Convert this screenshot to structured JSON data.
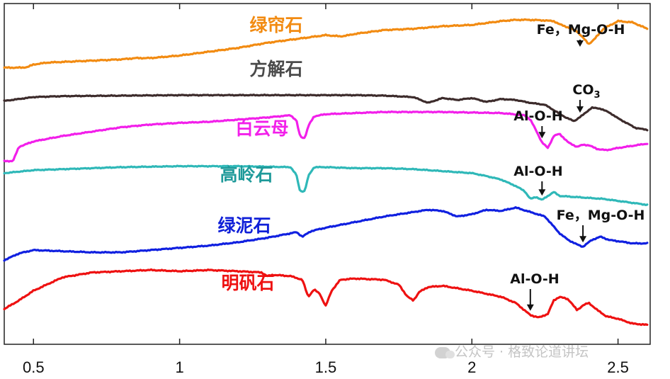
{
  "chart_data": {
    "type": "line",
    "xlabel": "",
    "ylabel": "",
    "xlim": [
      0.4,
      2.61
    ],
    "xticks": [
      0.5,
      1,
      1.5,
      2,
      2.5
    ],
    "xtick_labels": [
      "0.5",
      "1",
      "1.5",
      "2",
      "2.5"
    ],
    "grid": false,
    "series": [
      {
        "name": "绿帘石",
        "color": "#f28b12",
        "label_color": "#f28b12",
        "x": [
          0.4,
          0.46,
          0.48,
          0.5,
          0.55,
          0.6,
          0.7,
          0.8,
          0.85,
          0.9,
          1.0,
          1.1,
          1.2,
          1.3,
          1.4,
          1.5,
          1.55,
          1.58,
          1.6,
          1.7,
          1.8,
          1.9,
          2.0,
          2.1,
          2.15,
          2.2,
          2.25,
          2.28,
          2.3,
          2.33,
          2.36,
          2.38,
          2.4,
          2.42,
          2.45,
          2.5,
          2.55,
          2.6
        ],
        "y": [
          0.25,
          0.25,
          0.26,
          0.3,
          0.33,
          0.34,
          0.36,
          0.38,
          0.4,
          0.4,
          0.44,
          0.5,
          0.56,
          0.64,
          0.7,
          0.76,
          0.74,
          0.76,
          0.78,
          0.84,
          0.86,
          0.9,
          0.92,
          0.98,
          1.0,
          1.0,
          0.99,
          0.98,
          0.93,
          0.88,
          0.82,
          0.72,
          0.62,
          0.7,
          0.86,
          0.98,
          0.96,
          0.86
        ]
      },
      {
        "name": "方解石",
        "color": "#3d2c2c",
        "label_color": "#4a4a4a",
        "x": [
          0.4,
          0.5,
          0.6,
          0.8,
          1.0,
          1.2,
          1.4,
          1.6,
          1.7,
          1.8,
          1.85,
          1.9,
          1.95,
          2.0,
          2.05,
          2.1,
          2.15,
          2.2,
          2.25,
          2.28,
          2.32,
          2.35,
          2.38,
          2.41,
          2.44,
          2.47,
          2.5,
          2.53,
          2.56,
          2.6
        ],
        "y": [
          0.64,
          0.72,
          0.74,
          0.75,
          0.76,
          0.76,
          0.76,
          0.76,
          0.75,
          0.72,
          0.6,
          0.7,
          0.66,
          0.7,
          0.62,
          0.68,
          0.66,
          0.6,
          0.56,
          0.45,
          0.3,
          0.22,
          0.35,
          0.5,
          0.48,
          0.4,
          0.28,
          0.18,
          0.08,
          0.04
        ]
      },
      {
        "name": "白云母",
        "color": "#f21fea",
        "label_color": "#f21fea",
        "x": [
          0.4,
          0.43,
          0.45,
          0.5,
          0.6,
          0.7,
          0.8,
          0.9,
          1.0,
          1.1,
          1.2,
          1.3,
          1.38,
          1.4,
          1.41,
          1.42,
          1.43,
          1.44,
          1.46,
          1.5,
          1.6,
          1.7,
          1.8,
          1.9,
          2.0,
          2.1,
          2.18,
          2.2,
          2.22,
          2.24,
          2.26,
          2.28,
          2.3,
          2.33,
          2.36,
          2.38,
          2.4,
          2.43,
          2.46,
          2.5,
          2.55,
          2.6
        ],
        "y": [
          0.06,
          0.06,
          0.32,
          0.42,
          0.52,
          0.6,
          0.68,
          0.73,
          0.76,
          0.78,
          0.82,
          0.86,
          0.9,
          0.8,
          0.55,
          0.48,
          0.5,
          0.7,
          0.88,
          0.92,
          0.94,
          0.96,
          0.96,
          0.96,
          0.95,
          0.94,
          0.9,
          0.82,
          0.62,
          0.4,
          0.3,
          0.52,
          0.56,
          0.4,
          0.32,
          0.36,
          0.35,
          0.28,
          0.26,
          0.3,
          0.34,
          0.38
        ]
      },
      {
        "name": "高岭石",
        "color": "#2fb8b8",
        "label_color": "#1f9a9a",
        "x": [
          0.4,
          0.5,
          0.6,
          0.7,
          0.8,
          0.9,
          1.0,
          1.1,
          1.2,
          1.3,
          1.38,
          1.4,
          1.41,
          1.42,
          1.43,
          1.44,
          1.46,
          1.5,
          1.6,
          1.7,
          1.8,
          1.9,
          2.0,
          2.05,
          2.1,
          2.15,
          2.18,
          2.2,
          2.22,
          2.24,
          2.26,
          2.28,
          2.3,
          2.35,
          2.4,
          2.45,
          2.5,
          2.55,
          2.6
        ],
        "y": [
          0.68,
          0.74,
          0.76,
          0.78,
          0.8,
          0.81,
          0.82,
          0.82,
          0.82,
          0.81,
          0.8,
          0.64,
          0.35,
          0.3,
          0.34,
          0.62,
          0.8,
          0.8,
          0.78,
          0.78,
          0.76,
          0.72,
          0.68,
          0.62,
          0.55,
          0.42,
          0.32,
          0.16,
          0.2,
          0.14,
          0.22,
          0.3,
          0.22,
          0.2,
          0.18,
          0.16,
          0.12,
          0.08,
          0.04
        ]
      },
      {
        "name": "绿泥石",
        "color": "#1020e0",
        "label_color": "#1020d8",
        "x": [
          0.4,
          0.45,
          0.5,
          0.6,
          0.7,
          0.8,
          0.9,
          1.0,
          1.1,
          1.2,
          1.3,
          1.4,
          1.42,
          1.45,
          1.5,
          1.6,
          1.7,
          1.8,
          1.85,
          1.9,
          1.95,
          2.0,
          2.05,
          2.1,
          2.15,
          2.2,
          2.25,
          2.28,
          2.3,
          2.33,
          2.36,
          2.38,
          2.41,
          2.44,
          2.47,
          2.5,
          2.55,
          2.6
        ],
        "y": [
          0.06,
          0.18,
          0.24,
          0.22,
          0.2,
          0.2,
          0.24,
          0.28,
          0.32,
          0.38,
          0.46,
          0.56,
          0.48,
          0.58,
          0.64,
          0.74,
          0.84,
          0.92,
          0.96,
          0.94,
          0.84,
          0.88,
          0.96,
          0.94,
          1.0,
          0.92,
          0.84,
          0.66,
          0.54,
          0.42,
          0.34,
          0.3,
          0.42,
          0.48,
          0.42,
          0.4,
          0.36,
          0.36
        ]
      },
      {
        "name": "明矾石",
        "color": "#ee1111",
        "label_color": "#ee1111",
        "x": [
          0.4,
          0.45,
          0.5,
          0.6,
          0.7,
          0.8,
          0.9,
          1.0,
          1.1,
          1.2,
          1.28,
          1.3,
          1.32,
          1.38,
          1.42,
          1.44,
          1.46,
          1.48,
          1.49,
          1.5,
          1.52,
          1.55,
          1.6,
          1.7,
          1.75,
          1.78,
          1.8,
          1.82,
          1.85,
          1.9,
          2.0,
          2.1,
          2.15,
          2.2,
          2.23,
          2.26,
          2.28,
          2.3,
          2.33,
          2.36,
          2.38,
          2.4,
          2.43,
          2.46,
          2.5,
          2.55,
          2.6
        ],
        "y": [
          0.3,
          0.44,
          0.6,
          0.82,
          0.9,
          0.92,
          0.94,
          0.92,
          0.94,
          0.92,
          0.9,
          0.84,
          0.86,
          0.84,
          0.78,
          0.5,
          0.62,
          0.55,
          0.44,
          0.35,
          0.6,
          0.78,
          0.8,
          0.78,
          0.7,
          0.5,
          0.44,
          0.58,
          0.66,
          0.68,
          0.6,
          0.5,
          0.4,
          0.2,
          0.16,
          0.22,
          0.44,
          0.5,
          0.46,
          0.28,
          0.36,
          0.4,
          0.28,
          0.18,
          0.14,
          0.06,
          0.04
        ]
      }
    ],
    "annotations": [
      {
        "text": "Fe，Mg-O-H",
        "x": 2.37,
        "series": 0,
        "color": "#111111"
      },
      {
        "text": "CO3",
        "x": 2.37,
        "series": 1,
        "color": "#111111"
      },
      {
        "text": "Al-O-H",
        "x": 2.24,
        "series": 2,
        "color": "#111111"
      },
      {
        "text": "Al-O-H",
        "x": 2.24,
        "series": 3,
        "color": "#111111"
      },
      {
        "text": "Fe，Mg-O-H",
        "x": 2.38,
        "series": 4,
        "color": "#111111"
      },
      {
        "text": "Al-O-H",
        "x": 2.2,
        "series": 5,
        "color": "#111111"
      }
    ]
  },
  "watermark": {
    "text": "公众号 · 格致论道讲坛"
  }
}
